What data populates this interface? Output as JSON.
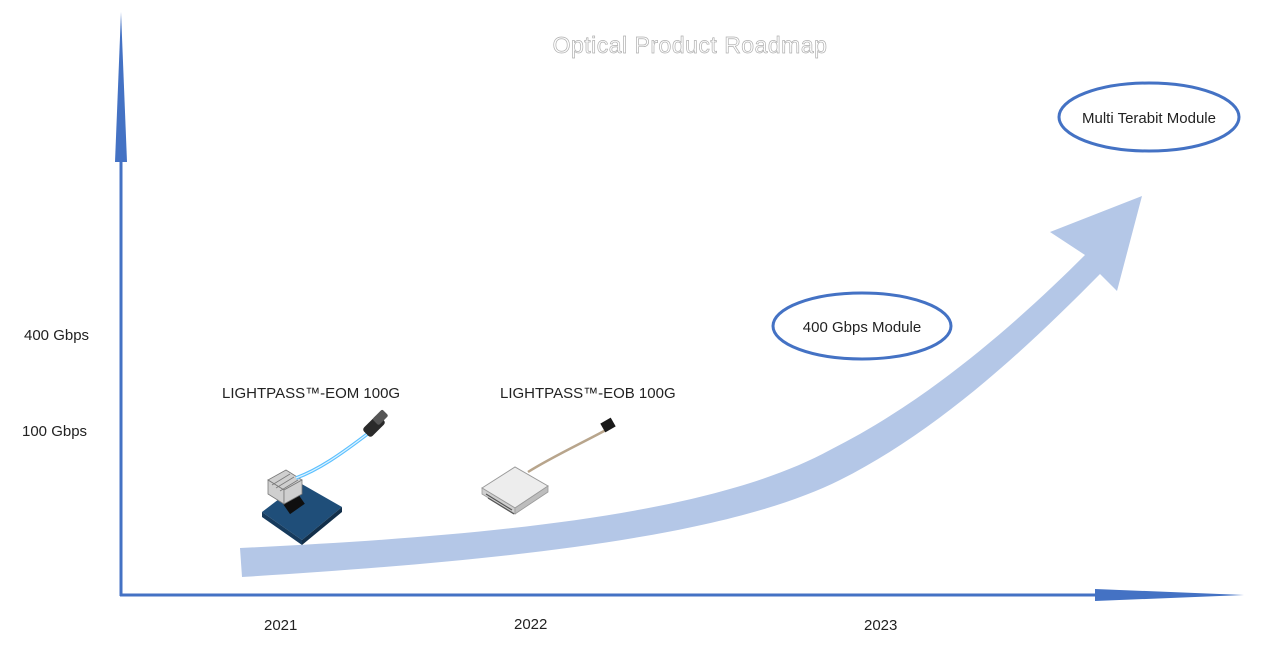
{
  "title": "Optical Product Roadmap",
  "y_axis": {
    "ticks": [
      "400 Gbps",
      "100 Gbps"
    ]
  },
  "x_axis": {
    "ticks": [
      "2021",
      "2022",
      "2023"
    ]
  },
  "products": [
    {
      "label": "LIGHTPASS™-EOM 100G",
      "icon": "eom-module-with-cable-icon"
    },
    {
      "label": "LIGHTPASS™-EOB 100G",
      "icon": "eob-module-with-cable-icon"
    }
  ],
  "milestones": [
    {
      "label": "400 Gbps Module"
    },
    {
      "label": "Multi Terabit Module"
    }
  ],
  "colors": {
    "axis": "#4472c4",
    "growth_arrow": "#b4c7e7",
    "ellipse_stroke": "#4472c4",
    "pcb": "#1f4e79",
    "cable": "#5bc0ff"
  }
}
